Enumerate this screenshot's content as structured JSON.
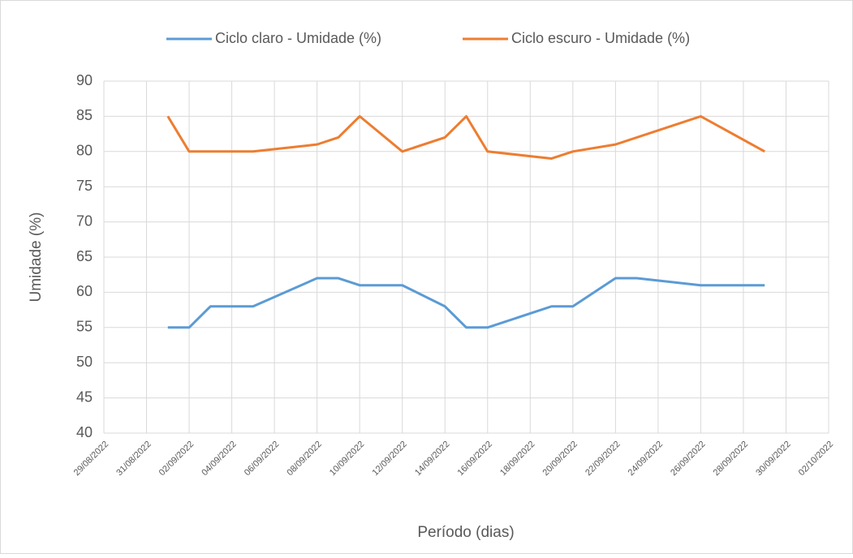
{
  "chart_data": {
    "type": "line",
    "legend": "top",
    "x_label": "Período (dias)",
    "y_label": "Umidade (%)",
    "xlim": [
      "29/08/2022",
      "02/10/2022"
    ],
    "xticks": [
      "29/08/2022",
      "31/08/2022",
      "02/09/2022",
      "04/09/2022",
      "06/09/2022",
      "08/09/2022",
      "10/09/2022",
      "12/09/2022",
      "14/09/2022",
      "16/09/2022",
      "18/09/2022",
      "20/09/2022",
      "22/09/2022",
      "24/09/2022",
      "26/09/2022",
      "28/09/2022",
      "30/09/2022",
      "02/10/2022"
    ],
    "ylim": [
      40,
      90
    ],
    "yticks": [
      40,
      45,
      50,
      55,
      60,
      65,
      70,
      75,
      80,
      85,
      90
    ],
    "grid": true,
    "series": [
      {
        "name": "Ciclo claro - Umidade (%)",
        "color": "#5b9bd5",
        "x": [
          "01/09/2022",
          "02/09/2022",
          "03/09/2022",
          "05/09/2022",
          "08/09/2022",
          "09/09/2022",
          "10/09/2022",
          "12/09/2022",
          "14/09/2022",
          "15/09/2022",
          "16/09/2022",
          "19/09/2022",
          "20/09/2022",
          "22/09/2022",
          "23/09/2022",
          "26/09/2022",
          "29/09/2022"
        ],
        "values": [
          55,
          55,
          58,
          58,
          62,
          62,
          61,
          61,
          58,
          55,
          55,
          58,
          58,
          62,
          62,
          61,
          61
        ]
      },
      {
        "name": "Ciclo escuro - Umidade (%)",
        "color": "#ed7d31",
        "x": [
          "01/09/2022",
          "02/09/2022",
          "05/09/2022",
          "08/09/2022",
          "09/09/2022",
          "10/09/2022",
          "12/09/2022",
          "14/09/2022",
          "15/09/2022",
          "16/09/2022",
          "19/09/2022",
          "20/09/2022",
          "22/09/2022",
          "26/09/2022",
          "29/09/2022"
        ],
        "values": [
          85,
          80,
          80,
          81,
          82,
          85,
          80,
          82,
          85,
          80,
          79,
          80,
          81,
          85,
          80
        ]
      }
    ]
  }
}
